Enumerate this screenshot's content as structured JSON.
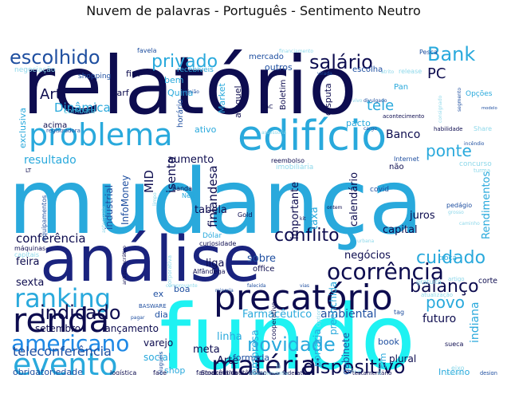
{
  "chart_data": {
    "type": "wordcloud",
    "title": "Nuvem de palavras - Português - Sentimento Neutro",
    "background": "#ffffff",
    "palette": [
      "#0d0c4f",
      "#1a237e",
      "#1f4fa0",
      "#1e88e5",
      "#29a9dc",
      "#3fc1e0",
      "#33e6f0",
      "#1ef2f2",
      "#8ed8ea",
      "#c6e7f4"
    ],
    "words": [
      {
        "text": "relatório",
        "weight": 100,
        "color": "#0d0c4f"
      },
      {
        "text": "mudança",
        "weight": 98,
        "color": "#29a9dc"
      },
      {
        "text": "fundo",
        "weight": 97,
        "color": "#1ef2f2"
      },
      {
        "text": "análise",
        "weight": 80,
        "color": "#1a237e"
      },
      {
        "text": "edifício",
        "weight": 60,
        "color": "#29a9dc"
      },
      {
        "text": "precatório",
        "weight": 55,
        "color": "#0d0c4f"
      },
      {
        "text": "problema",
        "weight": 50,
        "color": "#29a9dc"
      },
      {
        "text": "renda",
        "weight": 48,
        "color": "#0d0c4f"
      },
      {
        "text": "evento",
        "weight": 45,
        "color": "#29a9dc"
      },
      {
        "text": "matéria",
        "weight": 42,
        "color": "#0d0c4f"
      },
      {
        "text": "ocorrência",
        "weight": 38,
        "color": "#0d0c4f"
      },
      {
        "text": "ranking",
        "weight": 36,
        "color": "#29a9dc"
      },
      {
        "text": "americano",
        "weight": 34,
        "color": "#1e88e5"
      },
      {
        "text": "dispositivo",
        "weight": 32,
        "color": "#0d0c4f"
      },
      {
        "text": "indicado",
        "weight": 30,
        "color": "#0d0c4f"
      },
      {
        "text": "novidade",
        "weight": 28,
        "color": "#29a9dc"
      },
      {
        "text": "escolhido",
        "weight": 27,
        "color": "#1f4fa0"
      },
      {
        "text": "privado",
        "weight": 27,
        "color": "#29a9dc"
      },
      {
        "text": "salário",
        "weight": 26,
        "color": "#0d0c4f"
      },
      {
        "text": "Bank",
        "weight": 26,
        "color": "#29a9dc"
      },
      {
        "text": "balanço",
        "weight": 26,
        "color": "#0d0c4f"
      },
      {
        "text": "cuidado",
        "weight": 25,
        "color": "#29a9dc"
      },
      {
        "text": "conflito",
        "weight": 24,
        "color": "#0d0c4f"
      },
      {
        "text": "ponte",
        "weight": 24,
        "color": "#29a9dc"
      },
      {
        "text": "povo",
        "weight": 22,
        "color": "#29a9dc"
      },
      {
        "text": "teleconferência",
        "weight": 20,
        "color": "#1f4fa0"
      },
      {
        "text": "conferência",
        "weight": 19,
        "color": "#0d0c4f"
      },
      {
        "text": "Art",
        "weight": 18,
        "color": "#0d0c4f"
      },
      {
        "text": "tele",
        "weight": 18,
        "color": "#29a9dc"
      },
      {
        "text": "finlandesa",
        "weight": 18,
        "color": "#0d0c4f"
      },
      {
        "text": "PC",
        "weight": 17,
        "color": "#0d0c4f"
      },
      {
        "text": "isento",
        "weight": 17,
        "color": "#0d0c4f"
      },
      {
        "text": "MID",
        "weight": 17,
        "color": "#0d0c4f"
      },
      {
        "text": "Dinâmica",
        "weight": 16,
        "color": "#29a9dc"
      },
      {
        "text": "resultado",
        "weight": 16,
        "color": "#29a9dc"
      },
      {
        "text": "Farmacêutico",
        "weight": 15,
        "color": "#29a9dc"
      },
      {
        "text": "ambiental",
        "weight": 15,
        "color": "#1f4fa0"
      },
      {
        "text": "Banco",
        "weight": 15,
        "color": "#0d0c4f"
      },
      {
        "text": "Rendimentos",
        "weight": 14,
        "color": "#29a9dc"
      },
      {
        "text": "indiana",
        "weight": 14,
        "color": "#29a9dc"
      },
      {
        "text": "futuro",
        "weight": 14,
        "color": "#0d0c4f"
      },
      {
        "text": "negócios",
        "weight": 14,
        "color": "#0d0c4f"
      },
      {
        "text": "sobre",
        "weight": 14,
        "color": "#1f4fa0"
      },
      {
        "text": "liga",
        "weight": 14,
        "color": "#0d0c4f"
      },
      {
        "text": "feira",
        "weight": 14,
        "color": "#0d0c4f"
      },
      {
        "text": "sexta",
        "weight": 14,
        "color": "#0d0c4f"
      },
      {
        "text": "Arte",
        "weight": 14,
        "color": "#0d0c4f"
      },
      {
        "text": "linha",
        "weight": 14,
        "color": "#29a9dc"
      },
      {
        "text": "meta",
        "weight": 13,
        "color": "#0d0c4f"
      },
      {
        "text": "empresa",
        "weight": 13,
        "color": "#29a9dc"
      },
      {
        "text": "aumento",
        "weight": 13,
        "color": "#0d0c4f"
      },
      {
        "text": "tabela",
        "weight": 13,
        "color": "#0d0c4f"
      },
      {
        "text": "juros",
        "weight": 13,
        "color": "#0d0c4f"
      },
      {
        "text": "capital",
        "weight": 13,
        "color": "#0d0c4f"
      },
      {
        "text": "taxa",
        "weight": 13,
        "color": "#29a9dc"
      },
      {
        "text": "corte",
        "weight": 12,
        "color": "#0d0c4f"
      },
      {
        "text": "calendário",
        "weight": 12,
        "color": "#0d0c4f"
      },
      {
        "text": "importante",
        "weight": 12,
        "color": "#0d0c4f"
      },
      {
        "text": "industrial",
        "weight": 12,
        "color": "#1f4fa0"
      },
      {
        "text": "InfoMoney",
        "weight": 12,
        "color": "#1f4fa0"
      },
      {
        "text": "setembro",
        "weight": 12,
        "color": "#0d0c4f"
      },
      {
        "text": "lançamento",
        "weight": 12,
        "color": "#0d0c4f"
      },
      {
        "text": "varejo",
        "weight": 12,
        "color": "#0d0c4f"
      },
      {
        "text": "social",
        "weight": 12,
        "color": "#29a9dc"
      },
      {
        "text": "formada",
        "weight": 11,
        "color": "#1f4fa0"
      },
      {
        "text": "shop",
        "weight": 11,
        "color": "#29a9dc"
      },
      {
        "text": "preenchida",
        "weight": 11,
        "color": "#29a9dc"
      },
      {
        "text": "portaria",
        "weight": 11,
        "color": "#29a9dc"
      },
      {
        "text": "gabinete",
        "weight": 11,
        "color": "#1f4fa0"
      },
      {
        "text": "plural",
        "weight": 11,
        "color": "#0d0c4f"
      },
      {
        "text": "book",
        "weight": 11,
        "color": "#1f4fa0"
      },
      {
        "text": "sim",
        "weight": 11,
        "color": "#29a9dc"
      },
      {
        "text": "design",
        "weight": 10,
        "color": "#1f4fa0"
      },
      {
        "text": "Interno",
        "weight": 10,
        "color": "#29a9dc"
      },
      {
        "text": "obrigatoriedade",
        "weight": 10,
        "color": "#1f4fa0"
      },
      {
        "text": "dia",
        "weight": 10,
        "color": "#1f4fa0"
      },
      {
        "text": "ex",
        "weight": 10,
        "color": "#1f4fa0"
      },
      {
        "text": "boa",
        "weight": 10,
        "color": "#1f4fa0"
      },
      {
        "text": "escolha",
        "weight": 10,
        "color": "#1f4fa0"
      },
      {
        "text": "mercado",
        "weight": 10,
        "color": "#1f4fa0"
      },
      {
        "text": "outros",
        "weight": 10,
        "color": "#1f4fa0"
      },
      {
        "text": "fim",
        "weight": 10,
        "color": "#0d0c4f"
      },
      {
        "text": "bem",
        "weight": 10,
        "color": "#29a9dc"
      },
      {
        "text": "Quina",
        "weight": 10,
        "color": "#29a9dc"
      },
      {
        "text": "acima",
        "weight": 10,
        "color": "#0d0c4f"
      },
      {
        "text": "ativo",
        "weight": 10,
        "color": "#29a9dc"
      },
      {
        "text": "horário",
        "weight": 10,
        "color": "#1f4fa0"
      },
      {
        "text": "aluguel",
        "weight": 10,
        "color": "#0d0c4f"
      },
      {
        "text": "Market",
        "weight": 10,
        "color": "#29a9dc"
      },
      {
        "text": "disputa",
        "weight": 10,
        "color": "#0d0c4f"
      },
      {
        "text": "pacto",
        "weight": 10,
        "color": "#29a9dc"
      },
      {
        "text": "Boletim",
        "weight": 9,
        "color": "#0d0c4f"
      },
      {
        "text": "Darf",
        "weight": 9,
        "color": "#0d0c4f"
      },
      {
        "text": "shopping",
        "weight": 9,
        "color": "#1f4fa0"
      },
      {
        "text": "exclusiva",
        "weight": 9,
        "color": "#29a9dc"
      },
      {
        "text": "Pan",
        "weight": 9,
        "color": "#29a9dc"
      },
      {
        "text": "Opções",
        "weight": 9,
        "color": "#29a9dc"
      },
      {
        "text": "combate",
        "weight": 9,
        "color": "#3fc1e0"
      },
      {
        "text": "negociação",
        "weight": 9,
        "color": "#8ed8ea"
      },
      {
        "text": "recebíveis",
        "weight": 8,
        "color": "#29a9dc"
      },
      {
        "text": "favela",
        "weight": 8,
        "color": "#1f4fa0"
      },
      {
        "text": "Pesca",
        "weight": 8,
        "color": "#1f4fa0"
      },
      {
        "text": "release",
        "weight": 8,
        "color": "#8ed8ea"
      },
      {
        "text": "não",
        "weight": 8,
        "color": "#0d0c4f"
      },
      {
        "text": "Internet",
        "weight": 8,
        "color": "#1f4fa0"
      },
      {
        "text": "concurso",
        "weight": 8,
        "color": "#8ed8ea"
      },
      {
        "text": "pedágio",
        "weight": 8,
        "color": "#1f4fa0"
      },
      {
        "text": "covid",
        "weight": 8,
        "color": "#1f4fa0"
      },
      {
        "text": "troca",
        "weight": 8,
        "color": "#29a9dc"
      },
      {
        "text": "office",
        "weight": 8,
        "color": "#0d0c4f"
      },
      {
        "text": "Dólar",
        "weight": 8,
        "color": "#29a9dc"
      },
      {
        "text": "curiosidade",
        "weight": 7,
        "color": "#0d0c4f"
      },
      {
        "text": "Alfândega",
        "weight": 7,
        "color": "#0d0c4f"
      },
      {
        "text": "Gold",
        "weight": 7,
        "color": "#0d0c4f"
      },
      {
        "text": "banda",
        "weight": 7,
        "color": "#0d0c4f"
      },
      {
        "text": "Nela",
        "weight": 7,
        "color": "#29a9dc"
      },
      {
        "text": "máquinas",
        "weight": 7,
        "color": "#0d0c4f"
      },
      {
        "text": "capitais",
        "weight": 7,
        "color": "#8ed8ea"
      },
      {
        "text": "equipamentos",
        "weight": 7,
        "color": "#1f4fa0"
      },
      {
        "text": "atualização",
        "weight": 7,
        "color": "#8ed8ea"
      },
      {
        "text": "artigo",
        "weight": 7,
        "color": "#8ed8ea"
      },
      {
        "text": "imobiliária",
        "weight": 7,
        "color": "#8ed8ea"
      },
      {
        "text": "reembolso",
        "weight": 7,
        "color": "#0d0c4f"
      },
      {
        "text": "acontecimento",
        "weight": 6,
        "color": "#0d0c4f"
      },
      {
        "text": "habilidade",
        "weight": 6,
        "color": "#0d0c4f"
      },
      {
        "text": "Share",
        "weight": 6,
        "color": "#8ed8ea"
      },
      {
        "text": "registradora",
        "weight": 6,
        "color": "#1f4fa0"
      },
      {
        "text": "turma",
        "weight": 6,
        "color": "#8ed8ea"
      },
      {
        "text": "cooperativo",
        "weight": 6,
        "color": "#0d0c4f"
      },
      {
        "text": "autônomo",
        "weight": 6,
        "color": "#0d0c4f"
      },
      {
        "text": "Stockmann",
        "weight": 6,
        "color": "#0d0c4f"
      },
      {
        "text": "farmacêutica",
        "weight": 6,
        "color": "#0d0c4f"
      },
      {
        "text": "logística",
        "weight": 6,
        "color": "#0d0c4f"
      },
      {
        "text": "federativa",
        "weight": 6,
        "color": "#0d0c4f"
      },
      {
        "text": "testamentário",
        "weight": 6,
        "color": "#0d0c4f"
      },
      {
        "text": "BASWARE",
        "weight": 6,
        "color": "#1f4fa0"
      },
      {
        "text": "Option",
        "weight": 6,
        "color": "#8ed8ea"
      },
      {
        "text": "sueca",
        "weight": 6,
        "color": "#0d0c4f"
      },
      {
        "text": "eixo",
        "weight": 6,
        "color": "#8ed8ea"
      },
      {
        "text": "gratuita",
        "weight": 7,
        "color": "#8ed8ea"
      },
      {
        "text": "tag",
        "weight": 6,
        "color": "#1f4fa0"
      },
      {
        "text": "ii",
        "weight": 9,
        "color": "#8ed8ea"
      },
      {
        "text": "face",
        "weight": 6,
        "color": "#0d0c4f"
      },
      {
        "text": "aluguéis",
        "weight": 6,
        "color": "#1f4fa0"
      },
      {
        "text": "corporativa",
        "weight": 6,
        "color": "#8ed8ea"
      },
      {
        "text": "antidemocrático",
        "weight": 5,
        "color": "#0d0c4f"
      },
      {
        "text": "minoria",
        "weight": 5,
        "color": "#1f4fa0"
      },
      {
        "text": "falecida",
        "weight": 5,
        "color": "#1f4fa0"
      },
      {
        "text": "vias",
        "weight": 5,
        "color": "#1f4fa0"
      },
      {
        "text": "comprovante",
        "weight": 5,
        "color": "#8ed8ea"
      },
      {
        "text": "pagar",
        "weight": 5,
        "color": "#1f4fa0"
      },
      {
        "text": "virada",
        "weight": 5,
        "color": "#1f4fa0"
      },
      {
        "text": "atrito",
        "weight": 5,
        "color": "#8ed8ea"
      },
      {
        "text": "divulgado",
        "weight": 5,
        "color": "#1f4fa0"
      },
      {
        "text": "opinião",
        "weight": 5,
        "color": "#1f4fa0"
      },
      {
        "text": "CAC",
        "weight": 6,
        "color": "#0d0c4f"
      },
      {
        "text": "assessoria",
        "weight": 5,
        "color": "#8ed8ea"
      },
      {
        "text": "ontem",
        "weight": 5,
        "color": "#0d0c4f"
      },
      {
        "text": "kit",
        "weight": 5,
        "color": "#0d0c4f"
      },
      {
        "text": "urbana",
        "weight": 5,
        "color": "#8ed8ea"
      },
      {
        "text": "superintendente",
        "weight": 5,
        "color": "#8ed8ea"
      },
      {
        "text": "incêndio",
        "weight": 5,
        "color": "#1f4fa0"
      },
      {
        "text": "caminho",
        "weight": 5,
        "color": "#8ed8ea"
      },
      {
        "text": "segmento",
        "weight": 5,
        "color": "#1f4fa0"
      },
      {
        "text": "modelo",
        "weight": 5,
        "color": "#1f4fa0"
      },
      {
        "text": "consignado",
        "weight": 5,
        "color": "#8ed8ea"
      },
      {
        "text": "financiamento",
        "weight": 5,
        "color": "#8ed8ea"
      },
      {
        "text": "vivo",
        "weight": 5,
        "color": "#8ed8ea"
      },
      {
        "text": "cargo",
        "weight": 5,
        "color": "#1f4fa0"
      },
      {
        "text": "limpo",
        "weight": 5,
        "color": "#8ed8ea"
      },
      {
        "text": "grosso",
        "weight": 5,
        "color": "#8ed8ea"
      },
      {
        "text": "antecipado",
        "weight": 5,
        "color": "#8ed8ea"
      },
      {
        "text": "Ficar",
        "weight": 5,
        "color": "#8ed8ea"
      },
      {
        "text": "Autos",
        "weight": 5,
        "color": "#8ed8ea"
      },
      {
        "text": "precoce",
        "weight": 5,
        "color": "#8ed8ea"
      },
      {
        "text": "LT",
        "weight": 5,
        "color": "#0d0c4f"
      }
    ]
  }
}
